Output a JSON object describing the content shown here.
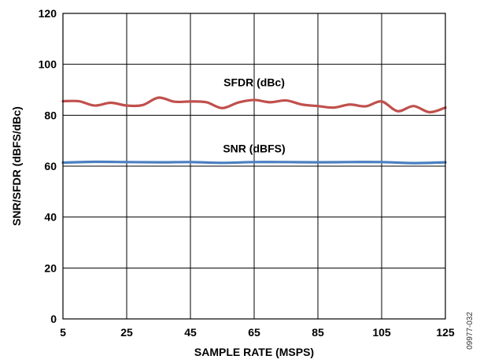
{
  "chart_data": {
    "type": "line",
    "title": "",
    "xlabel": "SAMPLE RATE (MSPS)",
    "ylabel": "SNR/SFDR (dBFS/dBc)",
    "xlim": [
      5,
      125
    ],
    "ylim": [
      0,
      120
    ],
    "xticks": [
      "5",
      "25",
      "45",
      "65",
      "85",
      "105",
      "125"
    ],
    "yticks": [
      "0",
      "20",
      "40",
      "60",
      "80",
      "100",
      "120"
    ],
    "grid": true,
    "series": [
      {
        "name": "SFDR (dBc)",
        "color": "#c0504d",
        "x": [
          5,
          10,
          15,
          20,
          25,
          30,
          35,
          40,
          45,
          50,
          55,
          60,
          65,
          70,
          75,
          80,
          85,
          90,
          95,
          100,
          105,
          110,
          115,
          120,
          125
        ],
        "y": [
          85.5,
          85.5,
          83.8,
          84.9,
          83.8,
          84.0,
          86.9,
          85.3,
          85.4,
          85.1,
          82.8,
          85.0,
          86.0,
          85.1,
          85.8,
          84.2,
          83.6,
          83.0,
          84.2,
          83.5,
          85.4,
          81.6,
          83.6,
          81.2,
          83.0
        ]
      },
      {
        "name": "SNR (dBFS)",
        "color": "#4a7fc1",
        "x": [
          5,
          15,
          25,
          35,
          45,
          55,
          65,
          75,
          85,
          95,
          105,
          115,
          125
        ],
        "y": [
          61.4,
          61.7,
          61.6,
          61.5,
          61.6,
          61.3,
          61.6,
          61.6,
          61.5,
          61.6,
          61.6,
          61.2,
          61.5
        ]
      }
    ]
  },
  "figure_id": "09977-032"
}
